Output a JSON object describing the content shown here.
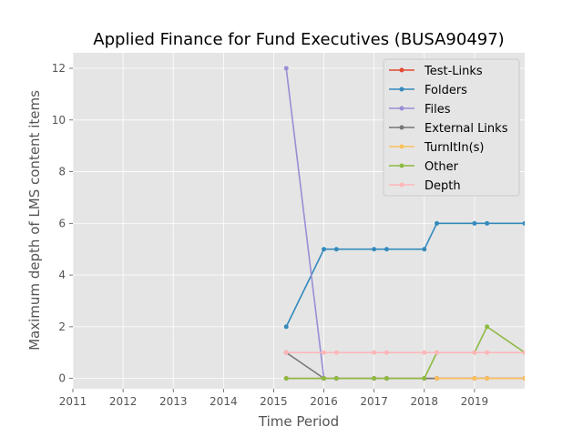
{
  "chart_data": {
    "type": "line",
    "title": "Applied Finance for Fund Executives (BUSA90497)",
    "xlabel": "Time Period",
    "ylabel": "Maximum depth of LMS content items",
    "xlim": [
      2011,
      2020.0
    ],
    "ylim": [
      -0.4,
      12.6
    ],
    "x_ticks": [
      2011,
      2012,
      2013,
      2014,
      2015,
      2016,
      2017,
      2018,
      2019
    ],
    "x_tick_labels": [
      "2011",
      "2012",
      "2013",
      "2014",
      "2015",
      "2016",
      "2017",
      "2018",
      "2019"
    ],
    "y_ticks": [
      0,
      2,
      4,
      6,
      8,
      10,
      12
    ],
    "y_tick_labels": [
      "0",
      "2",
      "4",
      "6",
      "8",
      "10",
      "12"
    ],
    "grid": true,
    "legend_position": "top-right",
    "series": [
      {
        "name": "Test-Links",
        "color": "#E24A33",
        "x": [
          2015.25,
          2016.0,
          2016.25,
          2017.0,
          2017.25,
          2018.0,
          2018.25,
          2019.0,
          2019.25,
          2020.0
        ],
        "values": [
          0,
          0,
          0,
          0,
          0,
          0,
          0,
          0,
          0,
          0
        ]
      },
      {
        "name": "Folders",
        "color": "#348ABD",
        "x": [
          2015.25,
          2016.0,
          2016.25,
          2017.0,
          2017.25,
          2018.0,
          2018.25,
          2019.0,
          2019.25,
          2020.0
        ],
        "values": [
          2,
          5,
          5,
          5,
          5,
          5,
          6,
          6,
          6,
          6
        ]
      },
      {
        "name": "Files",
        "color": "#988ED5",
        "x": [
          2015.25,
          2016.0
        ],
        "values": [
          12,
          0
        ]
      },
      {
        "name": "External Links",
        "color": "#777777",
        "x": [
          2015.25,
          2016.0,
          2016.25,
          2017.0,
          2017.25,
          2018.0,
          2018.25,
          2019.0,
          2019.25,
          2020.0
        ],
        "values": [
          1,
          0,
          0,
          0,
          0,
          0,
          0,
          0,
          0,
          0
        ]
      },
      {
        "name": "TurnItIn(s)",
        "color": "#FBC15E",
        "x": [
          2018.25,
          2019.0,
          2019.25,
          2020.0
        ],
        "values": [
          0,
          0,
          0,
          0
        ]
      },
      {
        "name": "Other",
        "color": "#8EBA42",
        "x": [
          2015.25,
          2016.0,
          2016.25,
          2017.0,
          2017.25,
          2018.0,
          2018.25,
          2019.0,
          2019.25,
          2020.0
        ],
        "values": [
          0,
          0,
          0,
          0,
          0,
          0,
          1,
          1,
          2,
          1
        ]
      },
      {
        "name": "Depth",
        "color": "#FFB5B8",
        "x": [
          2015.25,
          2016.0,
          2016.25,
          2017.0,
          2017.25,
          2018.0,
          2018.25,
          2019.0,
          2019.25,
          2020.0
        ],
        "values": [
          1,
          1,
          1,
          1,
          1,
          1,
          1,
          1,
          1,
          1
        ]
      }
    ]
  },
  "colors": {
    "plot_background": "#E5E5E5",
    "grid": "#FFFFFF",
    "legend_border": "#CCCCCC"
  }
}
